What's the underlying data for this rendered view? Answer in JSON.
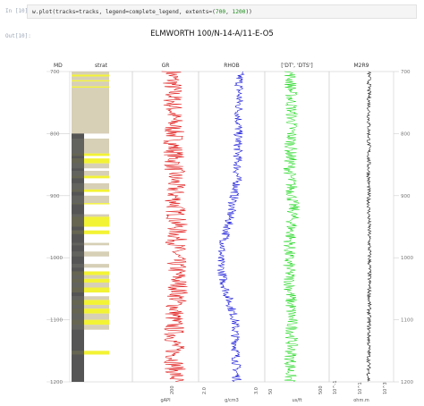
{
  "cell_input": {
    "prompt": "In [10]:",
    "code_prefix": "w.plot(tracks=tracks, legend=complete_legend, extents=(",
    "num_a": "700",
    "sep": ", ",
    "num_b": "1200",
    "code_suffix": "))"
  },
  "cell_output": {
    "prompt": "Out[10]:"
  },
  "figure": {
    "title": "ELMWORTH 100/N-14-A/11-E-O5"
  },
  "colors": {
    "gr": "#e01010",
    "rhob": "#1010d8",
    "dt": "#16d616",
    "res": "#111111",
    "strat_tan": "#d7cfb6",
    "strat_yellow": "#f3f335",
    "strat_dark": "#555555"
  },
  "chart_data": {
    "type": "line",
    "depth_range": [
      700,
      1200
    ],
    "depth_axis_label": "MD",
    "depth_ticks": [
      "700",
      "800",
      "900",
      "1000",
      "1100",
      "1200"
    ],
    "depth_values": [
      700,
      800,
      900,
      1000,
      1100,
      1200
    ],
    "tracks": [
      {
        "name": "strat",
        "bottom_ticks": []
      },
      {
        "name": "GR",
        "bottom_ticks": [
          "200"
        ],
        "bottom_unit": "gAPI",
        "xlim": [
          0,
          200
        ]
      },
      {
        "name": "RHOB",
        "bottom_ticks": [
          "2.0",
          "3.0"
        ],
        "bottom_unit": "g/cm3",
        "xlim": [
          2.0,
          3.0
        ]
      },
      {
        "name": "['DT', 'DTS']",
        "bottom_ticks": [
          "50",
          "500"
        ],
        "bottom_unit": "us/ft",
        "xlim": [
          50,
          500
        ]
      },
      {
        "name": "M2R9",
        "bottom_ticks": [
          "10^-1",
          "10^1",
          "10^3"
        ],
        "bottom_unit": "ohm.m",
        "xlim": [
          0.1,
          1000
        ],
        "log": true
      }
    ],
    "strat_intervals": [
      {
        "top": 700,
        "base": 705,
        "kind": "tan"
      },
      {
        "top": 705,
        "base": 708,
        "kind": "yellow"
      },
      {
        "top": 708,
        "base": 714,
        "kind": "tan"
      },
      {
        "top": 714,
        "base": 716,
        "kind": "yellow"
      },
      {
        "top": 716,
        "base": 724,
        "kind": "tan"
      },
      {
        "top": 724,
        "base": 726,
        "kind": "yellow"
      },
      {
        "top": 726,
        "base": 800,
        "kind": "tan"
      },
      {
        "top": 800,
        "base": 808,
        "kind": "dark"
      },
      {
        "top": 808,
        "base": 832,
        "kind": "tan"
      },
      {
        "top": 832,
        "base": 836,
        "kind": "yellow"
      },
      {
        "top": 836,
        "base": 840,
        "kind": "dark"
      },
      {
        "top": 840,
        "base": 848,
        "kind": "yellow"
      },
      {
        "top": 848,
        "base": 856,
        "kind": "tan"
      },
      {
        "top": 856,
        "base": 860,
        "kind": "dark"
      },
      {
        "top": 860,
        "base": 868,
        "kind": "tan"
      },
      {
        "top": 868,
        "base": 872,
        "kind": "yellow"
      },
      {
        "top": 872,
        "base": 880,
        "kind": "dark"
      },
      {
        "top": 880,
        "base": 890,
        "kind": "tan"
      },
      {
        "top": 890,
        "base": 894,
        "kind": "yellow"
      },
      {
        "top": 894,
        "base": 900,
        "kind": "dark"
      },
      {
        "top": 900,
        "base": 912,
        "kind": "tan"
      },
      {
        "top": 912,
        "base": 914,
        "kind": "yellow"
      },
      {
        "top": 914,
        "base": 930,
        "kind": "dark"
      },
      {
        "top": 930,
        "base": 934,
        "kind": "tan"
      },
      {
        "top": 934,
        "base": 950,
        "kind": "yellow"
      },
      {
        "top": 950,
        "base": 956,
        "kind": "dark"
      },
      {
        "top": 956,
        "base": 962,
        "kind": "yellow"
      },
      {
        "top": 962,
        "base": 976,
        "kind": "dark"
      },
      {
        "top": 976,
        "base": 980,
        "kind": "tan"
      },
      {
        "top": 980,
        "base": 990,
        "kind": "dark"
      },
      {
        "top": 990,
        "base": 998,
        "kind": "tan"
      },
      {
        "top": 998,
        "base": 1010,
        "kind": "dark"
      },
      {
        "top": 1010,
        "base": 1016,
        "kind": "tan"
      },
      {
        "top": 1016,
        "base": 1022,
        "kind": "dark"
      },
      {
        "top": 1022,
        "base": 1028,
        "kind": "yellow"
      },
      {
        "top": 1028,
        "base": 1034,
        "kind": "tan"
      },
      {
        "top": 1034,
        "base": 1040,
        "kind": "yellow"
      },
      {
        "top": 1040,
        "base": 1048,
        "kind": "tan"
      },
      {
        "top": 1048,
        "base": 1056,
        "kind": "yellow"
      },
      {
        "top": 1056,
        "base": 1062,
        "kind": "dark"
      },
      {
        "top": 1062,
        "base": 1068,
        "kind": "tan"
      },
      {
        "top": 1068,
        "base": 1076,
        "kind": "yellow"
      },
      {
        "top": 1076,
        "base": 1082,
        "kind": "tan"
      },
      {
        "top": 1082,
        "base": 1090,
        "kind": "yellow"
      },
      {
        "top": 1090,
        "base": 1100,
        "kind": "tan"
      },
      {
        "top": 1100,
        "base": 1108,
        "kind": "yellow"
      },
      {
        "top": 1108,
        "base": 1116,
        "kind": "tan"
      },
      {
        "top": 1116,
        "base": 1150,
        "kind": "dark"
      },
      {
        "top": 1150,
        "base": 1156,
        "kind": "yellow"
      },
      {
        "top": 1156,
        "base": 1200,
        "kind": "dark"
      }
    ],
    "curve_trends": {
      "gr": {
        "depth": [
          700,
          800,
          900,
          950,
          1000,
          1050,
          1100,
          1200
        ],
        "value": [
          120,
          125,
          128,
          135,
          130,
          140,
          125,
          130
        ],
        "noise": 32
      },
      "rhob": {
        "depth": [
          700,
          800,
          880,
          920,
          960,
          1000,
          1040,
          1100,
          1200
        ],
        "value": [
          2.62,
          2.6,
          2.58,
          2.5,
          2.42,
          2.32,
          2.38,
          2.55,
          2.58
        ],
        "noise": 0.07
      },
      "dt": {
        "depth": [
          700,
          780,
          860,
          920,
          1000,
          1060,
          1120,
          1200
        ],
        "value": [
          230,
          240,
          225,
          250,
          215,
          230,
          240,
          225
        ],
        "noise": 45
      },
      "res": {
        "depth": [
          700,
          900,
          1000,
          1100,
          1200
        ],
        "value": [
          30,
          28,
          32,
          30,
          28
        ],
        "noise": 0.12
      }
    }
  }
}
